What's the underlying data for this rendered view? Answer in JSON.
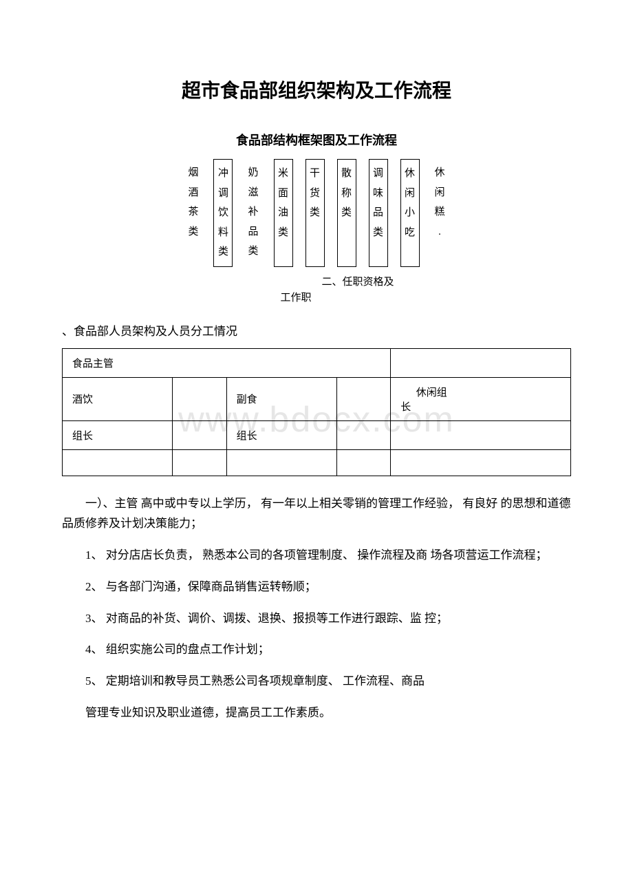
{
  "title": "超市食品部组织架构及工作流程",
  "subtitle": "食品部结构框架图及工作流程",
  "watermark": "www.bdocx.com",
  "categories": [
    {
      "lines": [
        "烟",
        "酒",
        "茶",
        "类"
      ],
      "boxed": false
    },
    {
      "lines": [
        "冲",
        "调",
        "饮",
        "料",
        "类"
      ],
      "boxed": true
    },
    {
      "lines": [
        "奶",
        "滋",
        "补",
        "品",
        "类"
      ],
      "boxed": false
    },
    {
      "lines": [
        "米",
        "面",
        "油",
        "类"
      ],
      "boxed": true
    },
    {
      "lines": [
        "干",
        "货",
        "类"
      ],
      "boxed": true
    },
    {
      "lines": [
        "散",
        "称",
        "类"
      ],
      "boxed": true
    },
    {
      "lines": [
        "调",
        "味",
        "品",
        "类"
      ],
      "boxed": true
    },
    {
      "lines": [
        "休",
        "闲",
        "小",
        "吃"
      ],
      "boxed": true
    },
    {
      "lines": [
        "休",
        "闲",
        "糕",
        "."
      ],
      "boxed": false
    }
  ],
  "inline_note_1": "二、任职资格及",
  "inline_note_2": "工作职",
  "section_head": "、食品部人员架构及人员分工情况",
  "org_table": {
    "rows": [
      [
        "食品主管",
        "",
        "",
        "",
        ""
      ],
      [
        "酒饮",
        "",
        "副食",
        "",
        "休闲组长"
      ],
      [
        "组长",
        "",
        "组长",
        "",
        ""
      ],
      [
        "",
        "",
        "",
        "",
        ""
      ]
    ],
    "colspans": [
      [
        4,
        0,
        0,
        0,
        1
      ],
      [
        1,
        1,
        1,
        1,
        1
      ],
      [
        1,
        1,
        1,
        1,
        1
      ],
      [
        1,
        1,
        1,
        1,
        1
      ]
    ]
  },
  "paragraphs": [
    "一）、主管 高中或中专以上学历， 有一年以上相关零销的管理工作经验， 有良好 的思想和道德品质修养及计划决策能力；",
    "1、 对分店店长负责， 熟悉本公司的各项管理制度、 操作流程及商 场各项营运工作流程；",
    "2、 与各部门沟通，保障商品销售运转畅顺；",
    "3、 对商品的补货、调价、调拨、退换、报损等工作进行跟踪、监 控；",
    "4、 组织实施公司的盘点工作计划；",
    "5、 定期培训和教导员工熟悉公司各项规章制度、 工作流程、商品",
    "管理专业知识及职业道德，提高员工工作素质。"
  ]
}
